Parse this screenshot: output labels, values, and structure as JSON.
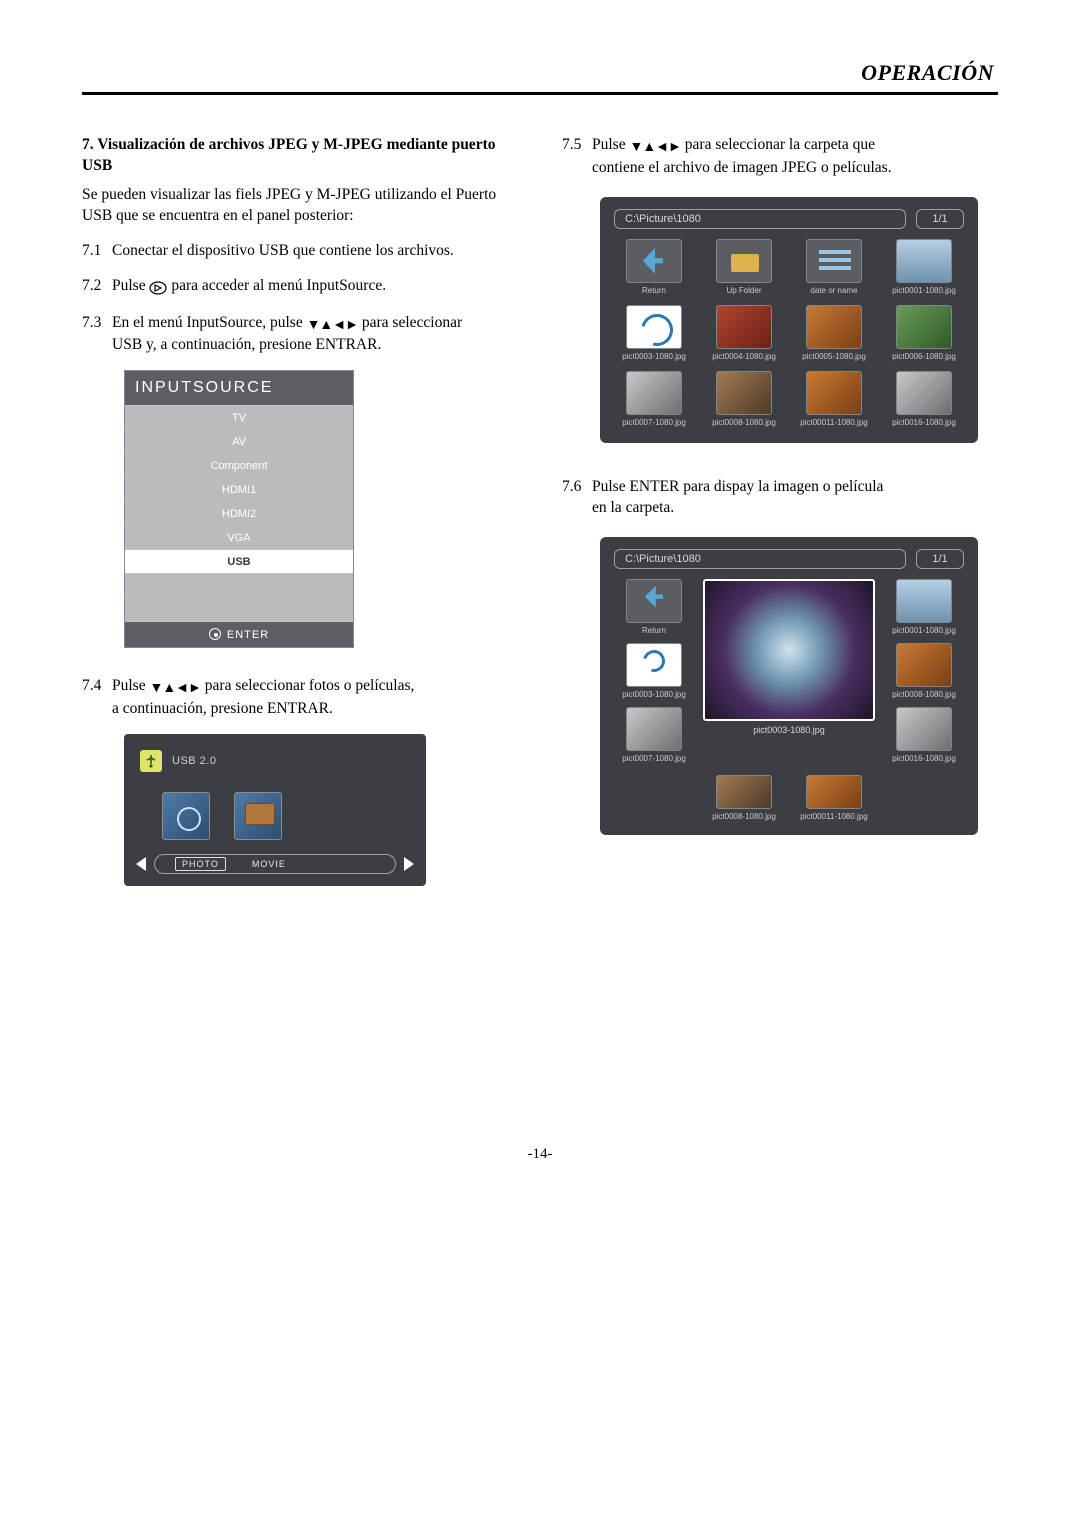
{
  "header": {
    "title": "OPERACIÓN"
  },
  "pageNumber": "-14-",
  "left": {
    "sectionNumber": "7.",
    "sectionTitle": "Visualización de archivos JPEG y M-JPEG mediante puerto USB",
    "intro": "Se pueden visualizar las fiels JPEG y M-JPEG utilizando el Puerto USB que se encuentra en el panel posterior:",
    "step71_num": "7.1",
    "step71": "Conectar el dispositivo USB que contiene los archivos.",
    "step72_num": "7.2",
    "step72_a": "Pulse ",
    "step72_b": " para acceder al menú InputSource.",
    "step73_num": "7.3",
    "step73_a": "En el menú InputSource, pulse",
    "step73_b": "para seleccionar",
    "step73_c": "USB y, a continuación, presione ENTRAR.",
    "step74_num": "7.4",
    "step74_a": "Pulse",
    "step74_b": " para seleccionar fotos o películas,",
    "step74_c": "a continuación, presione ENTRAR.",
    "inputSource": {
      "header": "INPUTSOURCE",
      "items": [
        "TV",
        "AV",
        "Component",
        "HDMI1",
        "HDMI2",
        "VGA",
        "USB"
      ],
      "selectedIndex": 6,
      "footer": "ENTER"
    },
    "usbChooser": {
      "title": "USB 2.0",
      "optionPhoto": "PHOTO",
      "optionMovie": "MOVIE"
    }
  },
  "right": {
    "step75_num": "7.5",
    "step75_a": "Pulse",
    "step75_b": " para seleccionar la carpeta que",
    "step75_c": "contiene el archivo de imagen JPEG o películas.",
    "step76_num": "7.6",
    "step76_a": "Pulse ENTER para dispay la imagen o película",
    "step76_b": "en la carpeta.",
    "folder1": {
      "path": "C:\\Picture\\1080",
      "page": "1/1",
      "cells": [
        {
          "label": "Return",
          "cls": "return"
        },
        {
          "label": "Up Folder",
          "cls": "upfolder"
        },
        {
          "label": "date or name",
          "cls": "sort"
        },
        {
          "label": "pict0001-1080.jpg",
          "cls": "img1"
        },
        {
          "label": "pict0003-1080.jpg",
          "cls": "rot"
        },
        {
          "label": "pict0004-1080.jpg",
          "cls": "img3"
        },
        {
          "label": "pict0005-1080.jpg",
          "cls": "img4"
        },
        {
          "label": "pict0006-1080.jpg",
          "cls": "img2"
        },
        {
          "label": "pict0007-1080.jpg",
          "cls": "img5"
        },
        {
          "label": "pict0008-1080.jpg",
          "cls": "img6"
        },
        {
          "label": "pict00011-1080.jpg",
          "cls": "img4"
        },
        {
          "label": "pict0016-1080.jpg",
          "cls": "img5"
        }
      ]
    },
    "folder2": {
      "path": "C:\\Picture\\1080",
      "page": "1/1",
      "leftSide": [
        {
          "label": "Return",
          "cls": "return"
        },
        {
          "label": "pict0003-1080.jpg",
          "cls": "rot"
        },
        {
          "label": "pict0007-1080.jpg",
          "cls": "img5"
        }
      ],
      "rightSide": [
        {
          "label": "pict0001-1080.jpg",
          "cls": "img1"
        },
        {
          "label": "pict0008-1080.jpg",
          "cls": "img4"
        },
        {
          "label": "pict0016-1080.jpg",
          "cls": "img5"
        }
      ],
      "center": {
        "label": "pict0003-1080.jpg"
      },
      "bottom": [
        {
          "label": "pict0008-1080.jpg",
          "cls": "img6"
        },
        {
          "label": "pict00011-1080.jpg",
          "cls": "img4"
        }
      ]
    }
  }
}
